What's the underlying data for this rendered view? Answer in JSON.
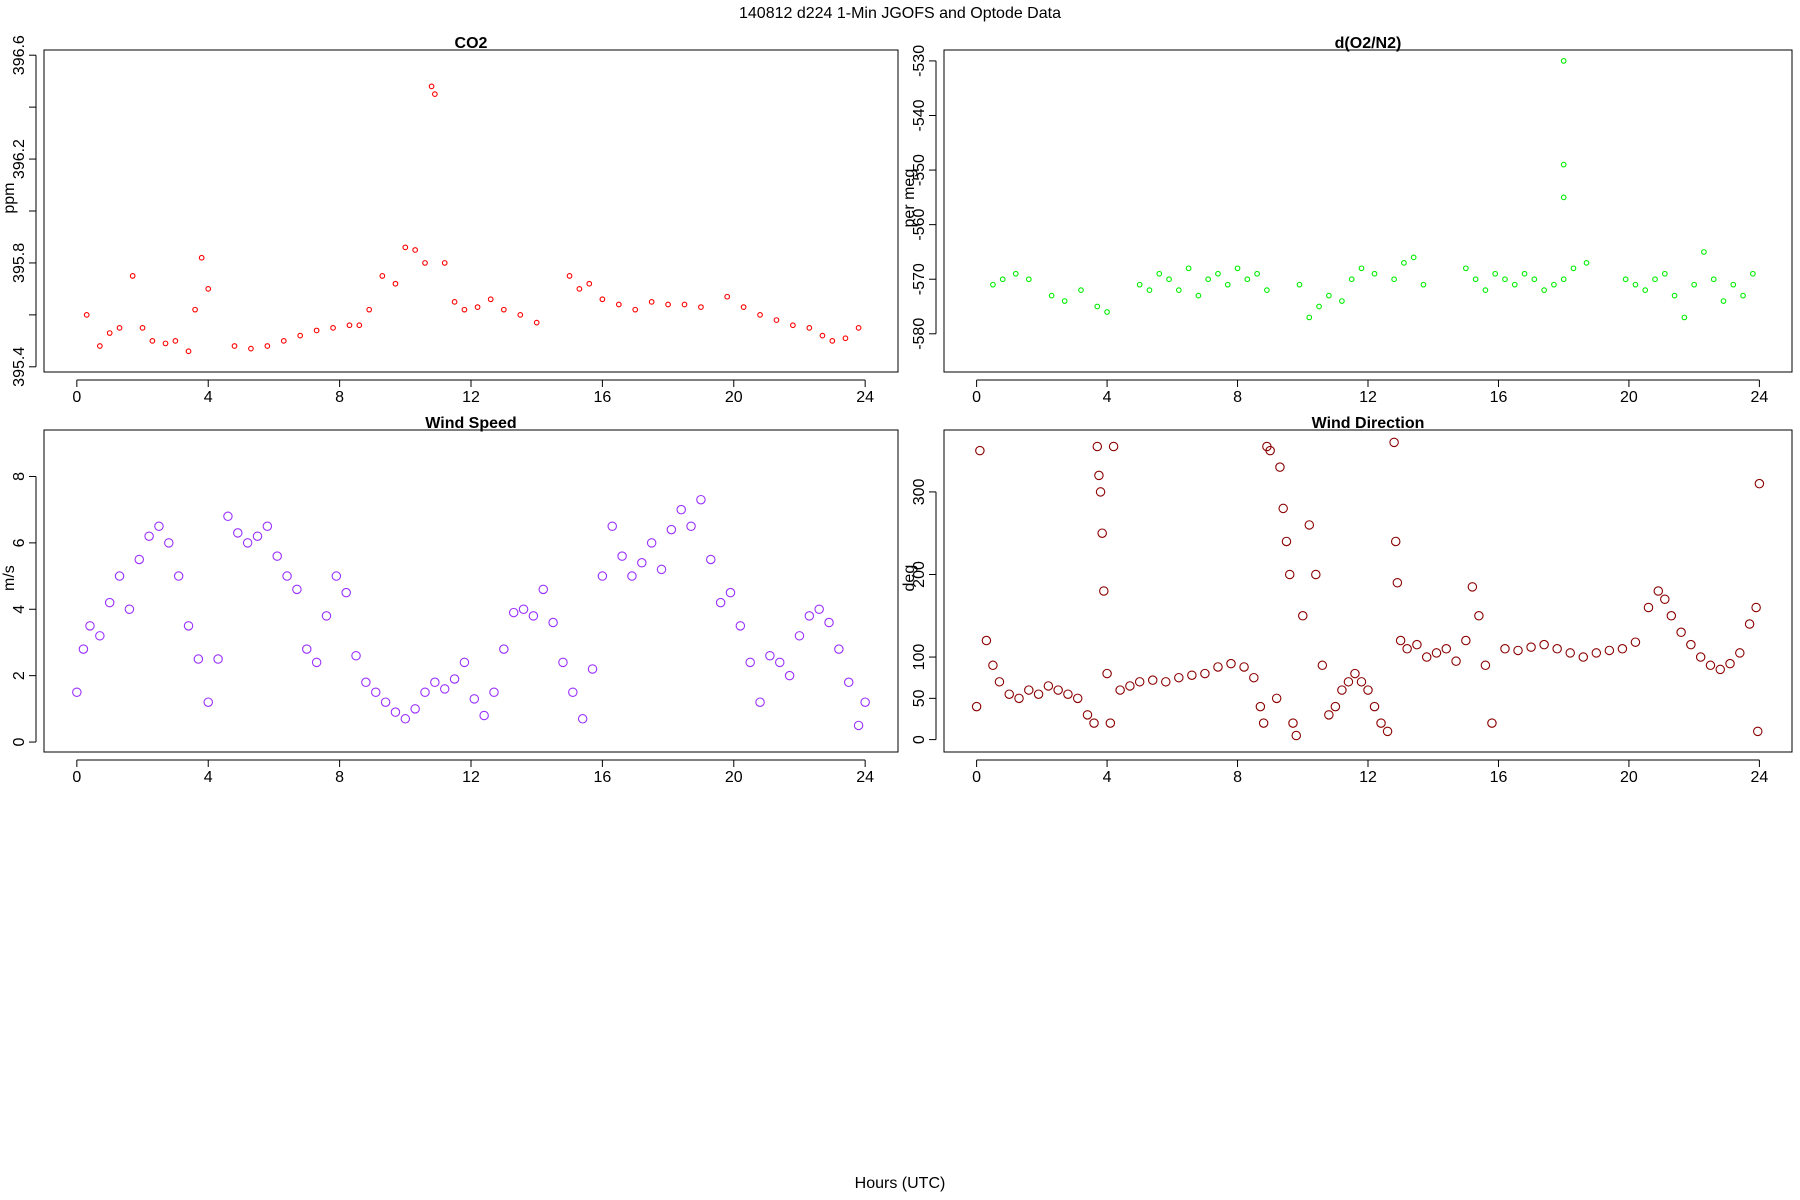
{
  "figure": {
    "title": "140812   d224   1-Min  JGOFS and Optode Data",
    "xlabel": "Hours (UTC)"
  },
  "chart_data": [
    {
      "id": "co2",
      "type": "scatter",
      "title": "CO2",
      "xlabel": "",
      "ylabel": "ppm",
      "xlim": [
        -1,
        25
      ],
      "ylim": [
        395.38,
        396.62
      ],
      "xticks": [
        0,
        4,
        8,
        12,
        16,
        20,
        24
      ],
      "yticks": [
        395.4,
        395.8,
        396.2,
        396.6
      ],
      "yminorticks": [
        395.6,
        396.0,
        396.4
      ],
      "color": "#ff0000",
      "marker_scale": 0.55,
      "x": [
        0.3,
        0.7,
        1.0,
        1.3,
        1.7,
        2.0,
        2.3,
        2.7,
        3.0,
        3.4,
        3.6,
        3.8,
        4.0,
        4.8,
        5.3,
        5.8,
        6.3,
        6.8,
        7.3,
        7.8,
        8.3,
        8.6,
        8.9,
        9.3,
        9.7,
        10.0,
        10.3,
        10.6,
        10.8,
        10.9,
        11.2,
        11.5,
        11.8,
        12.2,
        12.6,
        13.0,
        13.5,
        14.0,
        15.0,
        15.3,
        15.6,
        16.0,
        16.5,
        17.0,
        17.5,
        18.0,
        18.5,
        19.0,
        19.8,
        20.3,
        20.8,
        21.3,
        21.8,
        22.3,
        22.7,
        23.0,
        23.4,
        23.8
      ],
      "y": [
        395.6,
        395.48,
        395.53,
        395.55,
        395.75,
        395.55,
        395.5,
        395.49,
        395.5,
        395.46,
        395.62,
        395.82,
        395.7,
        395.48,
        395.47,
        395.48,
        395.5,
        395.52,
        395.54,
        395.55,
        395.56,
        395.56,
        395.62,
        395.75,
        395.72,
        395.86,
        395.85,
        395.8,
        396.48,
        396.45,
        395.8,
        395.65,
        395.62,
        395.63,
        395.66,
        395.62,
        395.6,
        395.57,
        395.75,
        395.7,
        395.72,
        395.66,
        395.64,
        395.62,
        395.65,
        395.64,
        395.64,
        395.63,
        395.67,
        395.63,
        395.6,
        395.58,
        395.56,
        395.55,
        395.52,
        395.5,
        395.51,
        395.55
      ]
    },
    {
      "id": "o2n2",
      "type": "scatter",
      "title": "d(O2/N2)",
      "xlabel": "",
      "ylabel": "per meg",
      "xlim": [
        -1,
        25
      ],
      "ylim": [
        -587,
        -528
      ],
      "xticks": [
        0,
        4,
        8,
        12,
        16,
        20,
        24
      ],
      "yticks": [
        -580,
        -570,
        -560,
        -550,
        -540,
        -530
      ],
      "color": "#00ee00",
      "marker_scale": 0.55,
      "x": [
        0.5,
        0.8,
        1.2,
        1.6,
        2.3,
        2.7,
        3.2,
        3.7,
        4.0,
        5.0,
        5.3,
        5.6,
        5.9,
        6.2,
        6.5,
        6.8,
        7.1,
        7.4,
        7.7,
        8.0,
        8.3,
        8.6,
        8.9,
        9.9,
        10.2,
        10.5,
        10.8,
        11.2,
        11.5,
        11.8,
        12.2,
        12.8,
        13.1,
        13.4,
        13.7,
        15.0,
        15.3,
        15.6,
        15.9,
        16.2,
        16.5,
        16.8,
        17.1,
        17.4,
        17.7,
        18.0,
        18.3,
        18.7,
        19.9,
        20.2,
        20.5,
        20.8,
        21.1,
        21.4,
        21.7,
        22.0,
        22.3,
        22.6,
        22.9,
        23.2,
        23.5,
        23.8,
        18.0,
        18.0,
        18.0
      ],
      "y": [
        -571,
        -570,
        -569,
        -570,
        -573,
        -574,
        -572,
        -575,
        -576,
        -571,
        -572,
        -569,
        -570,
        -572,
        -568,
        -573,
        -570,
        -569,
        -571,
        -568,
        -570,
        -569,
        -572,
        -571,
        -577,
        -575,
        -573,
        -574,
        -570,
        -568,
        -569,
        -570,
        -567,
        -566,
        -571,
        -568,
        -570,
        -572,
        -569,
        -570,
        -571,
        -569,
        -570,
        -572,
        -571,
        -570,
        -568,
        -567,
        -570,
        -571,
        -572,
        -570,
        -569,
        -573,
        -577,
        -571,
        -565,
        -570,
        -574,
        -571,
        -573,
        -569,
        -530,
        -549,
        -555
      ]
    },
    {
      "id": "wind_speed",
      "type": "scatter",
      "title": "Wind Speed",
      "xlabel": "",
      "ylabel": "m/s",
      "xlim": [
        -1,
        25
      ],
      "ylim": [
        -0.3,
        9.4
      ],
      "xticks": [
        0,
        4,
        8,
        12,
        16,
        20,
        24
      ],
      "yticks": [
        0,
        2,
        4,
        6,
        8
      ],
      "color": "#9b30ff",
      "marker_scale": 1.0,
      "x": [
        0.0,
        0.2,
        0.4,
        0.7,
        1.0,
        1.3,
        1.6,
        1.9,
        2.2,
        2.5,
        2.8,
        3.1,
        3.4,
        3.7,
        4.0,
        4.3,
        4.6,
        4.9,
        5.2,
        5.5,
        5.8,
        6.1,
        6.4,
        6.7,
        7.0,
        7.3,
        7.6,
        7.9,
        8.2,
        8.5,
        8.8,
        9.1,
        9.4,
        9.7,
        10.0,
        10.3,
        10.6,
        10.9,
        11.2,
        11.5,
        11.8,
        12.1,
        12.4,
        12.7,
        13.0,
        13.3,
        13.6,
        13.9,
        14.2,
        14.5,
        14.8,
        15.1,
        15.4,
        15.7,
        16.0,
        16.3,
        16.6,
        16.9,
        17.2,
        17.5,
        17.8,
        18.1,
        18.4,
        18.7,
        19.0,
        19.3,
        19.6,
        19.9,
        20.2,
        20.5,
        20.8,
        21.1,
        21.4,
        21.7,
        22.0,
        22.3,
        22.6,
        22.9,
        23.2,
        23.5,
        23.8,
        24.0
      ],
      "y": [
        1.5,
        2.8,
        3.5,
        3.2,
        4.2,
        5.0,
        4.0,
        5.5,
        6.2,
        6.5,
        6.0,
        5.0,
        3.5,
        2.5,
        1.2,
        2.5,
        6.8,
        6.3,
        6.0,
        6.2,
        6.5,
        5.6,
        5.0,
        4.6,
        2.8,
        2.4,
        3.8,
        5.0,
        4.5,
        2.6,
        1.8,
        1.5,
        1.2,
        0.9,
        0.7,
        1.0,
        1.5,
        1.8,
        1.6,
        1.9,
        2.4,
        1.3,
        0.8,
        1.5,
        2.8,
        3.9,
        4.0,
        3.8,
        4.6,
        3.6,
        2.4,
        1.5,
        0.7,
        2.2,
        5.0,
        6.5,
        5.6,
        5.0,
        5.4,
        6.0,
        5.2,
        6.4,
        7.0,
        6.5,
        7.3,
        5.5,
        4.2,
        4.5,
        3.5,
        2.4,
        1.2,
        2.6,
        2.4,
        2.0,
        3.2,
        3.8,
        4.0,
        3.6,
        2.8,
        1.8,
        0.5,
        1.2
      ]
    },
    {
      "id": "wind_direction",
      "type": "scatter",
      "title": "Wind Direction",
      "xlabel": "",
      "ylabel": "deg",
      "xlim": [
        -1,
        25
      ],
      "ylim": [
        -15,
        375
      ],
      "xticks": [
        0,
        4,
        8,
        12,
        16,
        20,
        24
      ],
      "yticks": [
        0,
        50,
        100,
        200,
        300
      ],
      "color": "#8b0000",
      "marker_scale": 1.0,
      "x": [
        0.0,
        0.1,
        0.3,
        0.5,
        0.7,
        1.0,
        1.3,
        1.6,
        1.9,
        2.2,
        2.5,
        2.8,
        3.1,
        3.4,
        3.6,
        3.7,
        3.75,
        3.8,
        3.85,
        3.9,
        4.0,
        4.1,
        4.2,
        4.4,
        4.7,
        5.0,
        5.4,
        5.8,
        6.2,
        6.6,
        7.0,
        7.4,
        7.8,
        8.2,
        8.5,
        8.7,
        8.8,
        8.9,
        9.0,
        9.2,
        9.3,
        9.4,
        9.5,
        9.6,
        9.7,
        9.8,
        10.0,
        10.2,
        10.4,
        10.6,
        10.8,
        11.0,
        11.2,
        11.4,
        11.6,
        11.8,
        12.0,
        12.2,
        12.4,
        12.6,
        12.8,
        12.85,
        12.9,
        13.0,
        13.2,
        13.5,
        13.8,
        14.1,
        14.4,
        14.7,
        15.0,
        15.2,
        15.4,
        15.6,
        15.8,
        16.2,
        16.6,
        17.0,
        17.4,
        17.8,
        18.2,
        18.6,
        19.0,
        19.4,
        19.8,
        20.2,
        20.6,
        20.9,
        21.1,
        21.3,
        21.6,
        21.9,
        22.2,
        22.5,
        22.8,
        23.1,
        23.4,
        23.7,
        23.9,
        23.95,
        24.0
      ],
      "y": [
        40,
        350,
        120,
        90,
        70,
        55,
        50,
        60,
        55,
        65,
        60,
        55,
        50,
        30,
        20,
        355,
        320,
        300,
        250,
        180,
        80,
        20,
        355,
        60,
        65,
        70,
        72,
        70,
        75,
        78,
        80,
        88,
        92,
        88,
        75,
        40,
        20,
        355,
        350,
        50,
        330,
        280,
        240,
        200,
        20,
        5,
        150,
        260,
        200,
        90,
        30,
        40,
        60,
        70,
        80,
        70,
        60,
        40,
        20,
        10,
        360,
        240,
        190,
        120,
        110,
        115,
        100,
        105,
        110,
        95,
        120,
        185,
        150,
        90,
        20,
        110,
        108,
        112,
        115,
        110,
        105,
        100,
        105,
        108,
        110,
        118,
        160,
        180,
        170,
        150,
        130,
        115,
        100,
        90,
        85,
        92,
        105,
        140,
        160,
        10,
        310
      ]
    }
  ]
}
